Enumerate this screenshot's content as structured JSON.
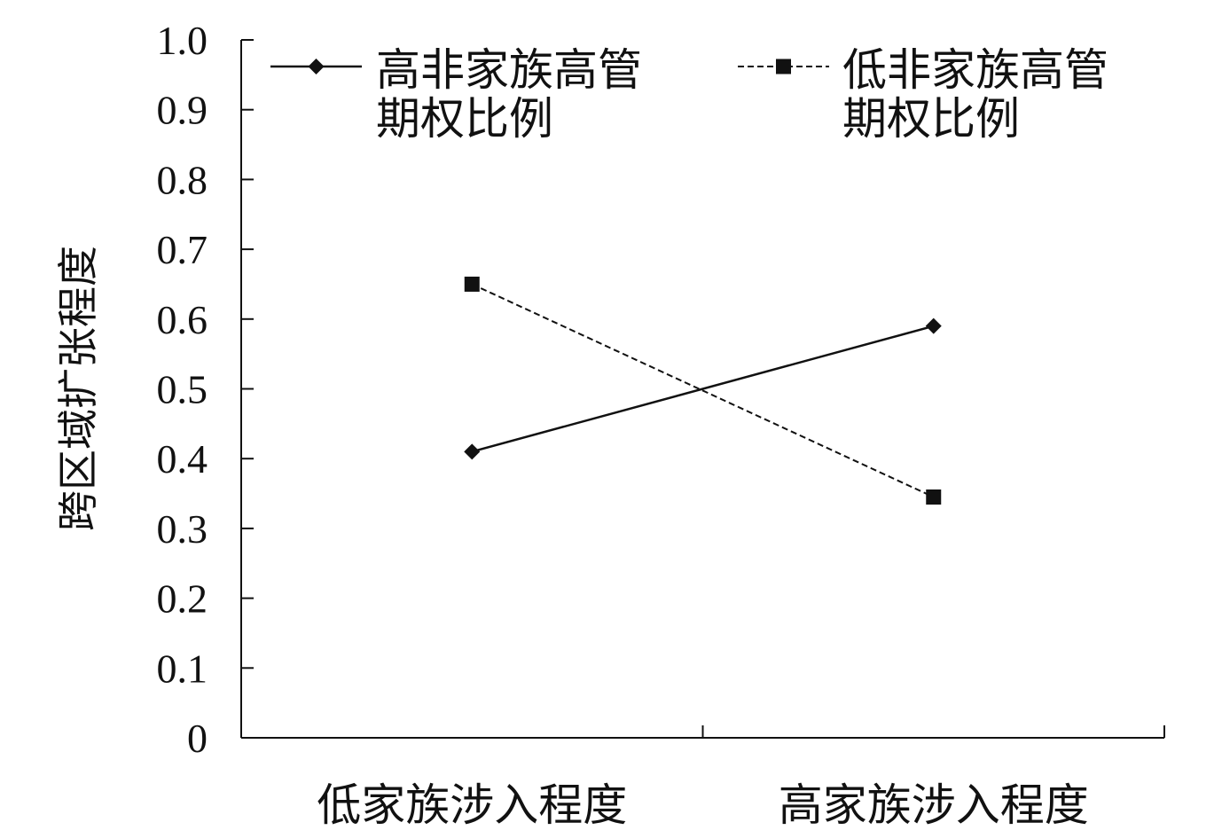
{
  "chart_data": {
    "type": "line",
    "title": "",
    "xlabel": "",
    "ylabel": "跨区域扩张程度",
    "categories": [
      "低家族涉入程度",
      "高家族涉入程度"
    ],
    "ylim": [
      0,
      1.0
    ],
    "yticks": [
      "0",
      "0.1",
      "0.2",
      "0.3",
      "0.4",
      "0.5",
      "0.6",
      "0.7",
      "0.8",
      "0.9",
      "1.0"
    ],
    "grid": false,
    "legend_position": "top",
    "series": [
      {
        "name_lines": [
          "高非家族高管",
          "期权比例"
        ],
        "values": [
          0.41,
          0.59
        ],
        "line_style": "solid",
        "marker": "diamond",
        "color": "#111111"
      },
      {
        "name_lines": [
          "低非家族高管",
          "期权比例"
        ],
        "values": [
          0.65,
          0.345
        ],
        "line_style": "dashed",
        "marker": "square",
        "color": "#111111"
      }
    ]
  }
}
